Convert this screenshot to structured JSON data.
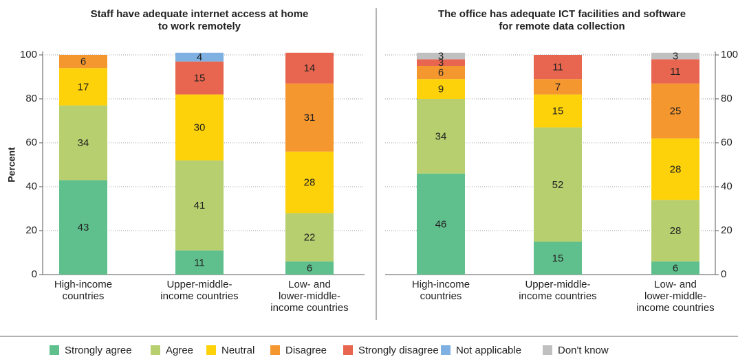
{
  "chart_data": [
    {
      "type": "bar",
      "stacked": true,
      "title": "Staff have adequate internet access at home\nto work remotely",
      "ylabel": "Percent",
      "categories": [
        "High-income\ncountries",
        "Upper-middle-\nincome countries",
        "Low- and\nlower-middle-\nincome countries"
      ],
      "ylim": [
        0,
        100
      ],
      "yticks": [
        0,
        20,
        40,
        60,
        80,
        100
      ],
      "grid": true,
      "yaxis_side": "left",
      "series": [
        {
          "name": "Strongly agree",
          "color": "#5fc08d",
          "values": [
            43,
            11,
            6
          ]
        },
        {
          "name": "Agree",
          "color": "#b7cf6e",
          "values": [
            34,
            41,
            22
          ]
        },
        {
          "name": "Neutral",
          "color": "#fdd20a",
          "values": [
            17,
            30,
            28
          ]
        },
        {
          "name": "Disagree",
          "color": "#f5972f",
          "values": [
            6,
            null,
            31
          ]
        },
        {
          "name": "Strongly disagree",
          "color": "#e8654f",
          "values": [
            null,
            15,
            14
          ]
        },
        {
          "name": "Not applicable",
          "color": "#7fb0e2",
          "values": [
            null,
            4,
            null
          ]
        },
        {
          "name": "Don't know",
          "color": "#c0c0c0",
          "values": [
            null,
            null,
            null
          ]
        }
      ]
    },
    {
      "type": "bar",
      "stacked": true,
      "title": "The office has adequate ICT facilities and software\nfor remote data collection",
      "categories": [
        "High-income\ncountries",
        "Upper-middle-\nincome countries",
        "Low- and\nlower-middle-\nincome countries"
      ],
      "ylim": [
        0,
        100
      ],
      "yticks": [
        0,
        20,
        40,
        60,
        80,
        100
      ],
      "grid": true,
      "yaxis_side": "right",
      "series": [
        {
          "name": "Strongly agree",
          "color": "#5fc08d",
          "values": [
            46,
            15,
            6
          ]
        },
        {
          "name": "Agree",
          "color": "#b7cf6e",
          "values": [
            34,
            52,
            28
          ]
        },
        {
          "name": "Neutral",
          "color": "#fdd20a",
          "values": [
            9,
            15,
            28
          ]
        },
        {
          "name": "Disagree",
          "color": "#f5972f",
          "values": [
            6,
            7,
            25
          ]
        },
        {
          "name": "Strongly disagree",
          "color": "#e8654f",
          "values": [
            3,
            11,
            11
          ]
        },
        {
          "name": "Not applicable",
          "color": "#7fb0e2",
          "values": [
            null,
            null,
            null
          ]
        },
        {
          "name": "Don't know",
          "color": "#c0c0c0",
          "values": [
            3,
            null,
            3
          ]
        }
      ]
    }
  ]
}
